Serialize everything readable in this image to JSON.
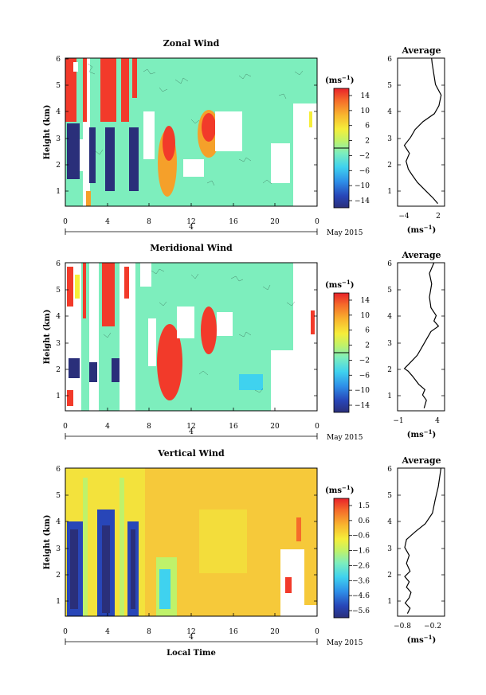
{
  "chart_data": [
    {
      "type": "heatmap",
      "title": "Zonal Wind",
      "ylabel": "Height (km)",
      "xlabel": "",
      "xlim": [
        0,
        24
      ],
      "ylim": [
        0.4,
        6
      ],
      "xticks": [
        "0",
        "4",
        "8",
        "12",
        "16",
        "20",
        "0"
      ],
      "yticks": [
        "1",
        "2",
        "3",
        "4",
        "5",
        "6"
      ],
      "date_tick": "4",
      "date_label": "May 2015",
      "colorbar": {
        "unit": "(ms",
        "unit_sup": "−1",
        "unit_close": ")",
        "ticks": [
          "14",
          "10",
          "6",
          "2",
          "−2",
          "−6",
          "−10",
          "−14"
        ],
        "min": -16,
        "max": 16
      },
      "average": {
        "title": "Average",
        "xlabel": "(ms",
        "xlabel_sup": "−1",
        "xlabel_close": ")",
        "xticks": [
          "−4",
          "2"
        ],
        "xlim": [
          -5.5,
          2.8
        ],
        "profile": [
          [
            1.6,
            0.5
          ],
          [
            0.8,
            0.7
          ],
          [
            -0.6,
            1.0
          ],
          [
            -2.0,
            1.3
          ],
          [
            -3.0,
            1.6
          ],
          [
            -3.6,
            1.8
          ],
          [
            -4.0,
            2.1
          ],
          [
            -3.4,
            2.4
          ],
          [
            -4.3,
            2.7
          ],
          [
            -3.2,
            3.0
          ],
          [
            -2.4,
            3.3
          ],
          [
            -1.0,
            3.6
          ],
          [
            1.0,
            3.9
          ],
          [
            1.8,
            4.2
          ],
          [
            2.2,
            4.6
          ],
          [
            1.2,
            5.0
          ],
          [
            0.9,
            5.4
          ],
          [
            0.6,
            5.8
          ],
          [
            0.5,
            6.0
          ]
        ]
      }
    },
    {
      "type": "heatmap",
      "title": "Meridional Wind",
      "ylabel": "Height (km)",
      "xlabel": "",
      "xlim": [
        0,
        24
      ],
      "ylim": [
        0.4,
        6
      ],
      "xticks": [
        "0",
        "4",
        "8",
        "12",
        "16",
        "20",
        "0"
      ],
      "yticks": [
        "1",
        "2",
        "3",
        "4",
        "5",
        "6"
      ],
      "date_tick": "4",
      "date_label": "May 2015",
      "colorbar": {
        "unit": "(ms",
        "unit_sup": "−1",
        "unit_close": ")",
        "ticks": [
          "14",
          "10",
          "6",
          "2",
          "−2",
          "−6",
          "−10",
          "−14"
        ],
        "min": -16,
        "max": 16
      },
      "average": {
        "title": "Average",
        "xlabel": "(ms",
        "xlabel_sup": "−1",
        "xlabel_close": ")",
        "xticks": [
          "−1",
          "4"
        ],
        "xlim": [
          -1.2,
          5.0
        ],
        "profile": [
          [
            2.3,
            0.5
          ],
          [
            2.6,
            0.8
          ],
          [
            2.1,
            1.0
          ],
          [
            2.4,
            1.2
          ],
          [
            1.6,
            1.4
          ],
          [
            0.8,
            1.7
          ],
          [
            0.2,
            1.9
          ],
          [
            -0.3,
            2.0
          ],
          [
            0.4,
            2.2
          ],
          [
            1.4,
            2.5
          ],
          [
            2.0,
            2.8
          ],
          [
            2.6,
            3.1
          ],
          [
            3.2,
            3.4
          ],
          [
            4.2,
            3.6
          ],
          [
            3.6,
            3.8
          ],
          [
            3.9,
            4.0
          ],
          [
            3.2,
            4.3
          ],
          [
            3.0,
            4.7
          ],
          [
            3.3,
            5.2
          ],
          [
            3.0,
            5.6
          ],
          [
            3.6,
            6.0
          ]
        ]
      }
    },
    {
      "type": "heatmap",
      "title": "Vertical Wind",
      "ylabel": "Height (km)",
      "xlabel": "Local Time",
      "xlim": [
        0,
        24
      ],
      "ylim": [
        0.4,
        6
      ],
      "xticks": [
        "0",
        "4",
        "8",
        "12",
        "16",
        "20",
        "0"
      ],
      "yticks": [
        "1",
        "2",
        "3",
        "4",
        "5",
        "6"
      ],
      "date_tick": "4",
      "date_label": "May 2015",
      "colorbar": {
        "unit": "(ms",
        "unit_sup": "−1",
        "unit_close": ")",
        "ticks": [
          "1.5",
          "0.6",
          "−0.6",
          "−1.6",
          "−2.6",
          "−3.6",
          "−4.6",
          "−5.6"
        ],
        "min": -6.0,
        "max": 2.0
      },
      "average": {
        "title": "Average",
        "xlabel": "(ms",
        "xlabel_sup": "−1",
        "xlabel_close": ")",
        "xticks": [
          "−0.8",
          "−0.2"
        ],
        "xlim": [
          -1.0,
          0.05
        ],
        "profile": [
          [
            -0.78,
            0.5
          ],
          [
            -0.72,
            0.7
          ],
          [
            -0.83,
            0.9
          ],
          [
            -0.74,
            1.1
          ],
          [
            -0.7,
            1.3
          ],
          [
            -0.8,
            1.5
          ],
          [
            -0.74,
            1.7
          ],
          [
            -0.84,
            1.9
          ],
          [
            -0.72,
            2.1
          ],
          [
            -0.8,
            2.4
          ],
          [
            -0.74,
            2.7
          ],
          [
            -0.84,
            3.0
          ],
          [
            -0.8,
            3.3
          ],
          [
            -0.6,
            3.6
          ],
          [
            -0.38,
            3.9
          ],
          [
            -0.22,
            4.3
          ],
          [
            -0.16,
            4.8
          ],
          [
            -0.09,
            5.3
          ],
          [
            -0.03,
            6.0
          ]
        ]
      }
    }
  ],
  "colors": {
    "positive": "#f23a2a",
    "calm": "#7deebd",
    "negative": "#2a2f7a",
    "background_vertical": "#f6c93a"
  }
}
